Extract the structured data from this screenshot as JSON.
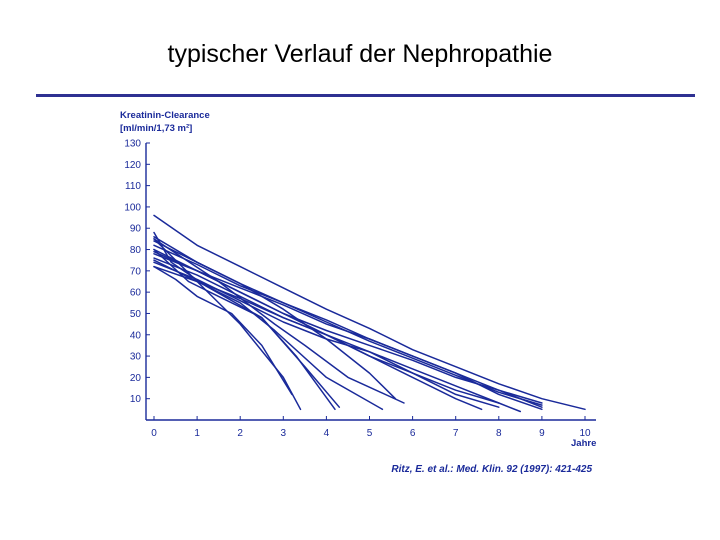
{
  "slide": {
    "title": "typischer Verlauf der Nephropathie",
    "accent_color": "#2e3192"
  },
  "citation": "Ritz, E. et al.: Med. Klin. 92 (1997): 421-425",
  "chart_data": {
    "type": "line",
    "title": "",
    "ylabel_line1": "Kreatinin-Clearance",
    "ylabel_line2": "[ml/min/1,73 m²]",
    "xlabel": "Jahre",
    "xlim": [
      0,
      10
    ],
    "ylim": [
      0,
      130
    ],
    "xticks": [
      0,
      1,
      2,
      3,
      4,
      5,
      6,
      7,
      8,
      9,
      10
    ],
    "yticks": [
      10,
      20,
      30,
      40,
      50,
      60,
      70,
      80,
      90,
      100,
      110,
      120,
      130
    ],
    "grid": false,
    "color": "#1a2a9a",
    "series": [
      {
        "x": [
          0.0,
          0.5,
          1.0,
          2.0,
          3.0,
          3.4
        ],
        "y": [
          85,
          75,
          65,
          45,
          20,
          5
        ]
      },
      {
        "x": [
          0.0,
          0.8,
          1.5,
          2.5,
          3.3,
          4.2
        ],
        "y": [
          80,
          65,
          58,
          48,
          30,
          5
        ]
      },
      {
        "x": [
          0.0,
          0.4,
          1.2,
          2.5,
          3.5,
          4.3
        ],
        "y": [
          88,
          74,
          63,
          48,
          25,
          6
        ]
      },
      {
        "x": [
          0.0,
          1.0,
          2.0,
          2.8,
          4.0,
          5.3
        ],
        "y": [
          75,
          65,
          55,
          42,
          20,
          5
        ]
      },
      {
        "x": [
          0.0,
          1.5,
          2.8,
          3.5,
          4.5,
          5.8
        ],
        "y": [
          85,
          65,
          45,
          35,
          20,
          8
        ]
      },
      {
        "x": [
          0.0,
          0.5,
          1.0,
          1.8,
          2.5,
          3.2
        ],
        "y": [
          72,
          66,
          58,
          50,
          35,
          12
        ]
      },
      {
        "x": [
          0.0,
          1.0,
          2.0,
          3.0,
          4.0,
          5.0,
          5.6
        ],
        "y": [
          86,
          74,
          64,
          52,
          38,
          22,
          10
        ]
      },
      {
        "x": [
          0.0,
          1.0,
          2.0,
          3.0,
          4.0,
          5.0,
          6.0,
          7.0,
          8.0,
          9.0
        ],
        "y": [
          82,
          73,
          63,
          55,
          47,
          38,
          30,
          22,
          12,
          5
        ]
      },
      {
        "x": [
          0.0,
          1.0,
          2.0,
          3.0,
          4.0,
          5.0,
          6.0,
          7.0,
          8.0,
          9.0,
          10.0
        ],
        "y": [
          96,
          82,
          72,
          62,
          52,
          43,
          33,
          25,
          17,
          10,
          5
        ]
      },
      {
        "x": [
          0.0,
          1.0,
          2.0,
          3.0,
          4.0,
          5.0,
          6.0,
          7.0,
          8.0,
          9.0
        ],
        "y": [
          80,
          70,
          62,
          54,
          45,
          38,
          30,
          22,
          14,
          8
        ]
      },
      {
        "x": [
          0.0,
          1.0,
          2.0,
          3.0,
          4.0,
          5.0,
          6.0,
          7.0,
          8.0,
          8.5
        ],
        "y": [
          76,
          68,
          58,
          48,
          40,
          30,
          22,
          14,
          8,
          4
        ]
      },
      {
        "x": [
          0.0,
          1.0,
          2.0,
          3.0,
          4.0,
          5.0,
          6.0,
          7.0,
          8.0,
          9.0
        ],
        "y": [
          78,
          70,
          60,
          50,
          42,
          35,
          28,
          20,
          14,
          6
        ]
      },
      {
        "x": [
          0.0,
          1.0,
          2.0,
          3.0,
          4.0,
          5.0,
          6.0,
          7.0,
          8.0
        ],
        "y": [
          74,
          66,
          56,
          46,
          38,
          32,
          24,
          16,
          8
        ]
      },
      {
        "x": [
          0.0,
          1.0,
          2.0,
          3.0,
          4.0,
          5.0,
          6.0,
          7.0,
          8.0,
          9.0
        ],
        "y": [
          84,
          74,
          64,
          55,
          46,
          37,
          29,
          21,
          13,
          7
        ]
      },
      {
        "x": [
          0.0,
          1.0,
          2.0,
          3.0,
          4.0,
          5.0,
          6.0,
          7.0,
          8.0
        ],
        "y": [
          72,
          65,
          57,
          48,
          40,
          32,
          22,
          12,
          6
        ]
      },
      {
        "x": [
          0.0,
          1.0,
          2.0,
          3.0,
          4.0,
          5.0,
          6.0,
          7.0,
          7.6
        ],
        "y": [
          79,
          70,
          60,
          50,
          40,
          30,
          20,
          10,
          5
        ]
      }
    ]
  }
}
